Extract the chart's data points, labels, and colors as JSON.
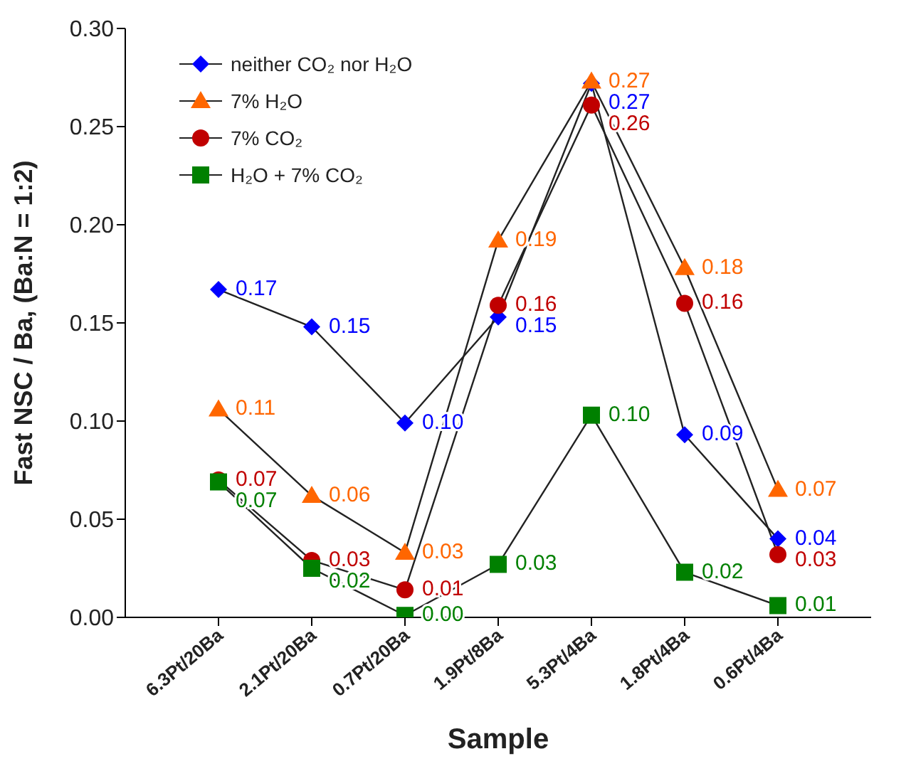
{
  "chart_data": {
    "type": "line",
    "xlabel": "Sample",
    "ylabel": "Fast NSC / Ba, (Ba:N = 1:2)",
    "categories": [
      "6.3Pt/20Ba",
      "2.1Pt/20Ba",
      "0.7Pt/20Ba",
      "1.9Pt/8Ba",
      "5.3Pt/4Ba",
      "1.8Pt/4Ba",
      "0.6Pt/4Ba"
    ],
    "ylim": [
      0,
      0.3
    ],
    "yticks": [
      {
        "value": 0,
        "label": "0.00"
      },
      {
        "value": 0.05,
        "label": "0.05"
      },
      {
        "value": 0.1,
        "label": "0.10"
      },
      {
        "value": 0.15,
        "label": "0.15"
      },
      {
        "value": 0.2,
        "label": "0.20"
      },
      {
        "value": 0.25,
        "label": "0.25"
      },
      {
        "value": 0.3,
        "label": "0.30"
      }
    ],
    "grid": false,
    "legend": "top left",
    "series": [
      {
        "name": "neither CO₂ nor H₂O",
        "color": "#0000ff",
        "marker": "diamond",
        "values": [
          0.167,
          0.148,
          0.099,
          0.153,
          0.272,
          0.093,
          0.04
        ],
        "value_labels": [
          "0.17",
          "0.15",
          "0.10",
          "0.15",
          "0.27",
          "0.09",
          "0.04"
        ]
      },
      {
        "name": "7% H₂O",
        "color": "#ff6600",
        "marker": "triangle",
        "values": [
          0.106,
          0.062,
          0.033,
          0.192,
          0.273,
          0.178,
          0.065
        ],
        "value_labels": [
          "0.11",
          "0.06",
          "0.03",
          "0.19",
          "0.27",
          "0.18",
          "0.07"
        ]
      },
      {
        "name": "7% CO₂",
        "color": "#c00000",
        "marker": "circle",
        "values": [
          0.07,
          0.029,
          0.014,
          0.159,
          0.261,
          0.16,
          0.032
        ],
        "value_labels": [
          "0.07",
          "0.03",
          "0.01",
          "0.16",
          "0.26",
          "0.16",
          "0.03"
        ]
      },
      {
        "name": "H₂O + 7% CO₂",
        "color": "#008000",
        "marker": "square",
        "values": [
          0.069,
          0.025,
          0.001,
          0.027,
          0.103,
          0.023,
          0.006
        ],
        "value_labels": [
          "0.07",
          "0.02",
          "0.00",
          "0.03",
          "0.10",
          "0.02",
          "0.01"
        ]
      }
    ]
  }
}
